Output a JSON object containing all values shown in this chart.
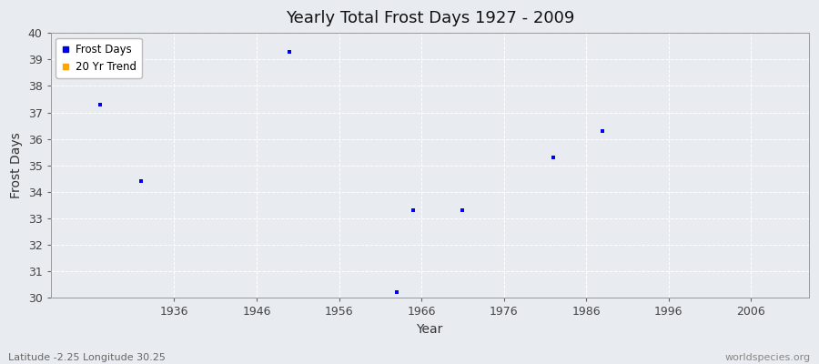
{
  "title": "Yearly Total Frost Days 1927 - 2009",
  "xlabel": "Year",
  "ylabel": "Frost Days",
  "subtitle": "Latitude -2.25 Longitude 30.25",
  "watermark": "worldspecies.org",
  "xlim": [
    1921,
    2013
  ],
  "ylim": [
    30,
    40
  ],
  "yticks": [
    30,
    31,
    32,
    33,
    34,
    35,
    36,
    37,
    38,
    39,
    40
  ],
  "xticks": [
    1936,
    1946,
    1956,
    1966,
    1976,
    1986,
    1996,
    2006
  ],
  "scatter_color": "#0000ee",
  "trend_color": "#FFA500",
  "fig_bg_color": "#e8ecf0",
  "plot_bg_color": "#e8ecf0",
  "grid_color": "#ffffff",
  "frost_days_x": [
    1927,
    1932,
    1950,
    1963,
    1965,
    1971,
    1982,
    1988
  ],
  "frost_days_y": [
    37.3,
    34.4,
    39.3,
    30.2,
    33.3,
    33.3,
    35.3,
    36.3
  ]
}
